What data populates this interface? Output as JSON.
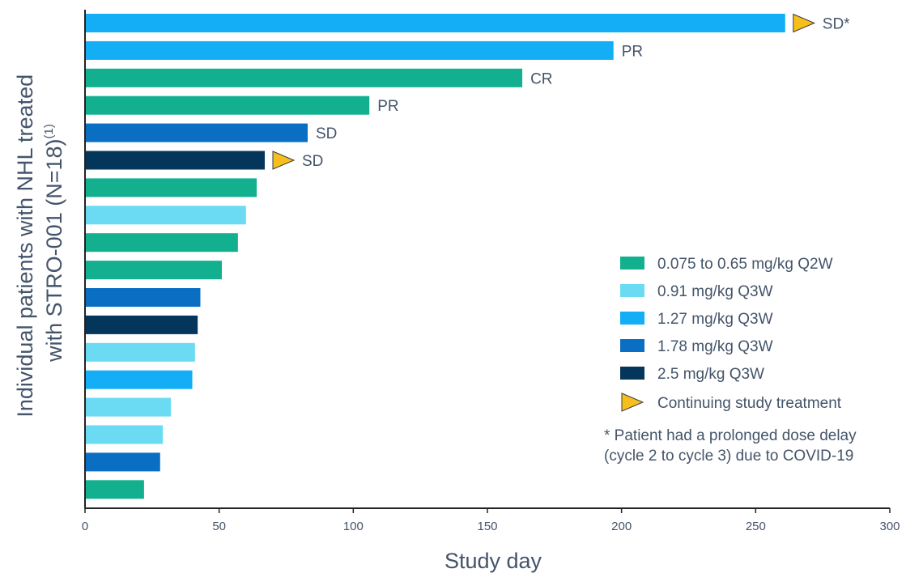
{
  "chart_data": {
    "type": "bar",
    "orientation": "horizontal",
    "xlabel": "Study day",
    "ylabel_line1": "Individual patients with NHL treated",
    "ylabel_line2": "with STRO-001 (N=18)",
    "ylabel_superscript": "(1)",
    "xlim": [
      0,
      300
    ],
    "xticks": [
      "0",
      "50",
      "100",
      "150",
      "200",
      "250",
      "300"
    ],
    "grid": false,
    "legend_position": "right",
    "dose_groups": [
      {
        "name": "0.075 to 0.65 mg/kg Q2W",
        "color": "#12b08e"
      },
      {
        "name": "0.91 mg/kg Q3W",
        "color": "#6adbf3"
      },
      {
        "name": "1.27 mg/kg Q3W",
        "color": "#13aef5"
      },
      {
        "name": "1.78 mg/kg Q3W",
        "color": "#0a6fc2"
      },
      {
        "name": "2.5 mg/kg Q3W",
        "color": "#04365c"
      }
    ],
    "continuing_marker": {
      "label": "Continuing study treatment",
      "color": "#f7bf1d",
      "icon": "triangle-right-icon"
    },
    "footnote": "* Patient had a prolonged dose delay (cycle 2 to cycle 3) due to COVID-19",
    "patients": [
      {
        "value": 261,
        "group": 2,
        "response": "SD*",
        "continuing": true
      },
      {
        "value": 197,
        "group": 2,
        "response": "PR",
        "continuing": false
      },
      {
        "value": 163,
        "group": 0,
        "response": "CR",
        "continuing": false
      },
      {
        "value": 106,
        "group": 0,
        "response": "PR",
        "continuing": false
      },
      {
        "value": 83,
        "group": 3,
        "response": "SD",
        "continuing": false
      },
      {
        "value": 67,
        "group": 4,
        "response": "SD",
        "continuing": true
      },
      {
        "value": 64,
        "group": 0,
        "response": "",
        "continuing": false
      },
      {
        "value": 60,
        "group": 1,
        "response": "",
        "continuing": false
      },
      {
        "value": 57,
        "group": 0,
        "response": "",
        "continuing": false
      },
      {
        "value": 51,
        "group": 0,
        "response": "",
        "continuing": false
      },
      {
        "value": 43,
        "group": 3,
        "response": "",
        "continuing": false
      },
      {
        "value": 42,
        "group": 4,
        "response": "",
        "continuing": false
      },
      {
        "value": 41,
        "group": 1,
        "response": "",
        "continuing": false
      },
      {
        "value": 40,
        "group": 2,
        "response": "",
        "continuing": false
      },
      {
        "value": 32,
        "group": 1,
        "response": "",
        "continuing": false
      },
      {
        "value": 29,
        "group": 1,
        "response": "",
        "continuing": false
      },
      {
        "value": 28,
        "group": 3,
        "response": "",
        "continuing": false
      },
      {
        "value": 22,
        "group": 0,
        "response": "",
        "continuing": false
      }
    ]
  }
}
